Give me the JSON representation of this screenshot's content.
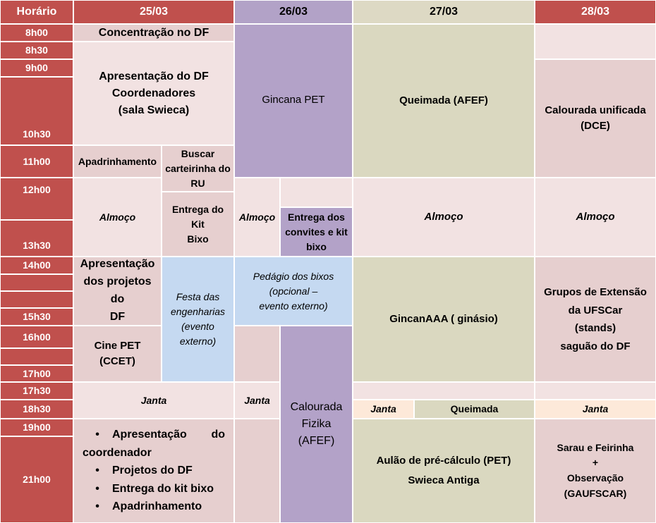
{
  "header": {
    "time_label": "Horário",
    "days": [
      "25/03",
      "26/03",
      "27/03",
      "28/03"
    ]
  },
  "times": [
    "8h00",
    "8h30",
    "9h00",
    "10h30",
    "11h00",
    "12h00",
    "13h30",
    "14h00",
    "15h30",
    "16h00",
    "17h00",
    "17h30",
    "18h30",
    "19h00",
    "21h00"
  ],
  "day1": {
    "concentracao": "Concentração no DF",
    "apresentacao_df": [
      "Apresentação do DF",
      "Coordenadores",
      "(sala Swieca)"
    ],
    "apadrinhamento": "Apadrinhamento",
    "buscar_carteirinha": [
      "Buscar",
      "carteirinha do",
      "RU"
    ],
    "almoco": "Almoço",
    "entrega_kit": [
      "Entrega do Kit",
      "Bixo"
    ],
    "apresentacao_projetos": [
      "Apresentação",
      "dos projetos do",
      "DF"
    ],
    "festa_engenharias": [
      "Festa das",
      "engenharias",
      "(evento",
      "externo)"
    ],
    "cine_pet": "Cine PET (CCET)",
    "janta": "Janta",
    "evening_list": {
      "item1_a": "Apresentação",
      "item1_b": "do",
      "item1_c": "coordenador",
      "item2": "Projetos do DF",
      "item3": "Entrega do kit bixo",
      "item4": "Apadrinhamento"
    }
  },
  "day2": {
    "gincana_pet": "Gincana PET",
    "almoco": "Almoço",
    "entrega_convites": [
      "Entrega dos",
      "convites e kit",
      "bixo"
    ],
    "pedagio": [
      "Pedágio dos bixos",
      "(opcional –",
      "evento externo)"
    ],
    "janta": "Janta",
    "calourada_fizika": [
      "Calourada",
      "Fizika",
      "(AFEF)"
    ]
  },
  "day3": {
    "queimada_afef": "Queimada (AFEF)",
    "almoco": "Almoço",
    "gincanaaa": "GincanAAA ( ginásio)",
    "janta": "Janta",
    "queimada": "Queimada",
    "aulao": [
      "Aulão de pré-cálculo (PET)",
      "Swieca Antiga"
    ]
  },
  "day4": {
    "calourada_unificada": [
      "Calourada unificada",
      "(DCE)"
    ],
    "almoco": "Almoço",
    "grupos_extensao": [
      "Grupos de Extensão",
      "da UFSCar",
      "(stands)",
      "saguão do DF"
    ],
    "janta": "Janta",
    "sarau": [
      "Sarau e Feirinha",
      "+",
      "Observação",
      "(GAUFSCAR)"
    ]
  },
  "colors": {
    "header_red": "#c0504d",
    "header_purple": "#b2a2c7",
    "header_olive": "#ddd9c4",
    "pink": "#e6cfcf",
    "light_pink": "#f2e2e2",
    "lavender": "#b3a2c8",
    "olive": "#dad8c0",
    "blue": "#c5d9f1",
    "peach": "#fde9d9"
  }
}
